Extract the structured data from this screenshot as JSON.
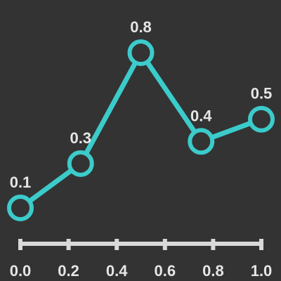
{
  "colors": {
    "background": "#333333",
    "series": "#3ccbcb",
    "axis": "#d9d9d9",
    "text": "#e6e6e6"
  },
  "chart_data": {
    "type": "line",
    "x": [
      0.0,
      0.25,
      0.5,
      0.75,
      1.0
    ],
    "values": [
      0.1,
      0.3,
      0.8,
      0.4,
      0.5
    ],
    "data_labels": [
      "0.1",
      "0.3",
      "0.8",
      "0.4",
      "0.5"
    ],
    "xlim": [
      0.0,
      1.0
    ],
    "ylim": [
      0.1,
      0.8
    ],
    "x_ticks": [
      0.0,
      0.2,
      0.4,
      0.6,
      0.8,
      1.0
    ],
    "x_tick_labels": [
      "0.0",
      "0.2",
      "0.4",
      "0.6",
      "0.8",
      "1.0"
    ],
    "markers": "hollow circles",
    "grid": false,
    "legend": "none",
    "title": "",
    "xlabel": "",
    "ylabel": ""
  }
}
